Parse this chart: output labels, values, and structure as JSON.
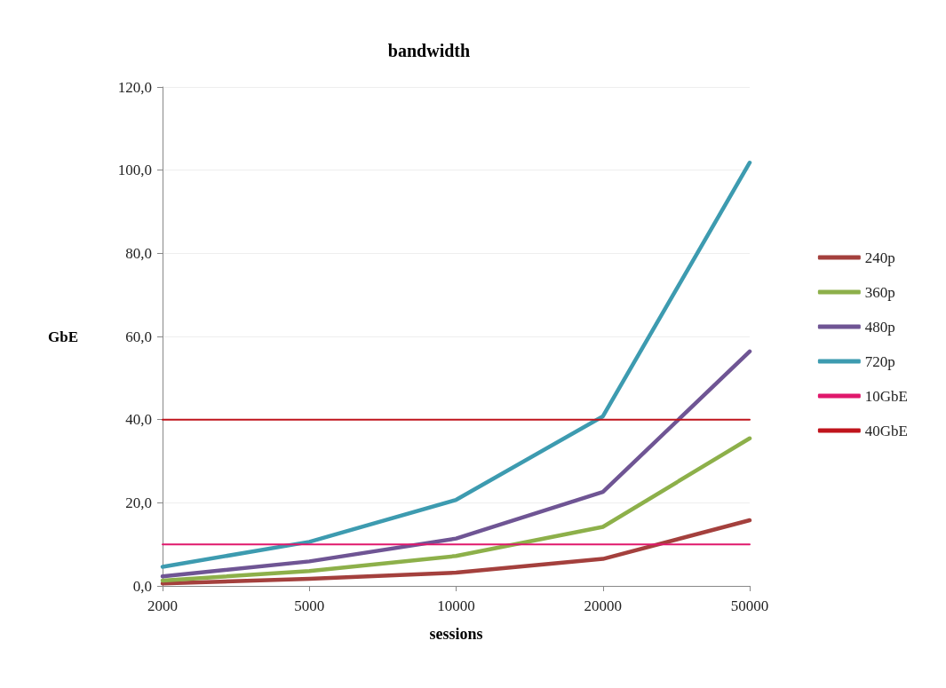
{
  "chart_data": {
    "type": "line",
    "title": "bandwidth",
    "xlabel": "sessions",
    "ylabel": "GbE",
    "categories": [
      "2000",
      "5000",
      "10000",
      "20000",
      "50000"
    ],
    "series": [
      {
        "name": "240p",
        "color": "#a4403d",
        "values": [
          0.6,
          1.7,
          3.2,
          6.5,
          15.8
        ]
      },
      {
        "name": "360p",
        "color": "#8db04a",
        "values": [
          1.3,
          3.6,
          7.2,
          14.2,
          35.5
        ]
      },
      {
        "name": "480p",
        "color": "#6f5594",
        "values": [
          2.3,
          5.9,
          11.4,
          22.6,
          56.4
        ]
      },
      {
        "name": "720p",
        "color": "#3d9bb0",
        "values": [
          4.6,
          10.6,
          20.7,
          40.8,
          101.8
        ]
      },
      {
        "name": "10GbE",
        "color": "#e0186c",
        "values": [
          10,
          10,
          10,
          10,
          10
        ]
      },
      {
        "name": "40GbE",
        "color": "#c0141c",
        "values": [
          40,
          40,
          40,
          40,
          40
        ]
      }
    ],
    "ylim": [
      0,
      120
    ],
    "yticks": [
      {
        "value": 0,
        "label": "0,0"
      },
      {
        "value": 20,
        "label": "20,0"
      },
      {
        "value": 40,
        "label": "40,0"
      },
      {
        "value": 60,
        "label": "60,0"
      },
      {
        "value": 80,
        "label": "80,0"
      },
      {
        "value": 100,
        "label": "100,0"
      },
      {
        "value": 120,
        "label": "120,0"
      }
    ],
    "grid": "y",
    "legend": "right",
    "marker": "none",
    "line_style": "solid"
  }
}
